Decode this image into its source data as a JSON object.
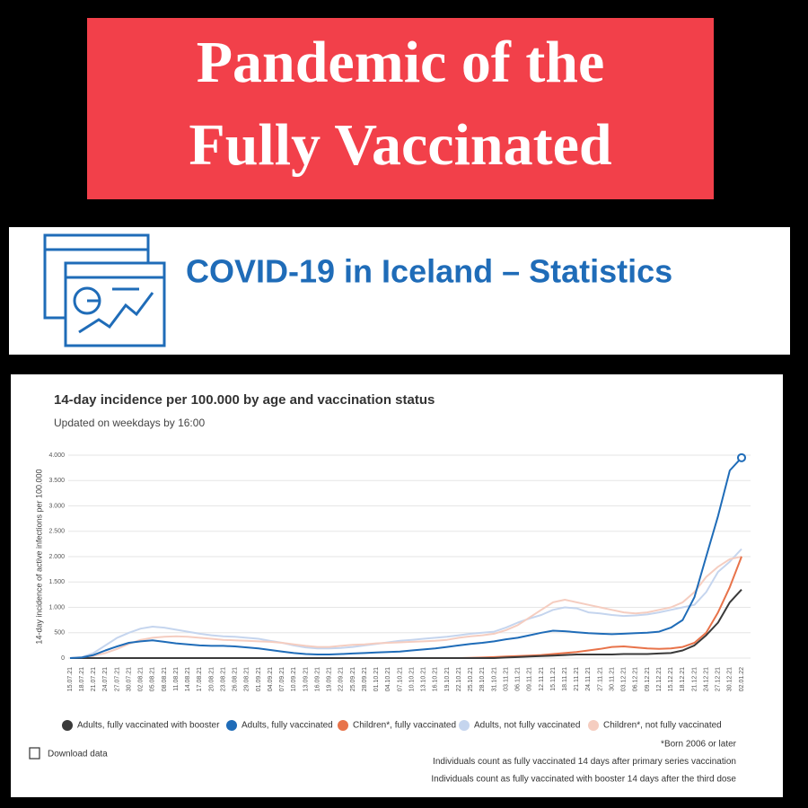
{
  "banner": {
    "lines": [
      "Pandemic of the",
      "Fully Vaccinated"
    ]
  },
  "header": {
    "title": "COVID-19 in Iceland – Statistics"
  },
  "chart_data": {
    "type": "line",
    "title": "14-day incidence per 100.000 by age and vaccination status",
    "subtitle": "Updated on weekdays by 16:00",
    "y_label": "14-day incidence of active infections per 100.000",
    "categories": [
      "15.07.21",
      "18.07.21",
      "21.07.21",
      "24.07.21",
      "27.07.21",
      "30.07.21",
      "02.08.21",
      "05.08.21",
      "08.08.21",
      "11.08.21",
      "14.08.21",
      "17.08.21",
      "20.08.21",
      "23.08.21",
      "26.08.21",
      "29.08.21",
      "01.09.21",
      "04.09.21",
      "07.09.21",
      "10.09.21",
      "13.09.21",
      "16.09.21",
      "19.09.21",
      "22.09.21",
      "25.09.21",
      "28.09.21",
      "01.10.21",
      "04.10.21",
      "07.10.21",
      "10.10.21",
      "13.10.21",
      "16.10.21",
      "19.10.21",
      "22.10.21",
      "25.10.21",
      "28.10.21",
      "31.10.21",
      "03.11.21",
      "06.11.21",
      "09.11.21",
      "12.11.21",
      "15.11.21",
      "18.11.21",
      "21.11.21",
      "24.11.21",
      "27.11.21",
      "30.11.21",
      "03.12.21",
      "06.12.21",
      "09.12.21",
      "12.12.21",
      "15.12.21",
      "18.12.21",
      "21.12.21",
      "24.12.21",
      "27.12.21",
      "30.12.21",
      "02.01.22"
    ],
    "series": [
      {
        "name": "Adults, fully vaccinated with booster",
        "color": "#3a3a3a",
        "values": [
          0,
          0,
          0,
          0,
          0,
          0,
          0,
          0,
          0,
          0,
          0,
          0,
          0,
          0,
          0,
          0,
          0,
          0,
          0,
          0,
          0,
          0,
          0,
          0,
          0,
          0,
          0,
          0,
          0,
          0,
          0,
          0,
          0,
          0,
          0,
          0,
          0,
          10,
          20,
          30,
          40,
          50,
          60,
          70,
          70,
          70,
          70,
          80,
          80,
          80,
          90,
          100,
          150,
          250,
          450,
          700,
          1100,
          1350
        ]
      },
      {
        "name": "Adults, fully vaccinated",
        "color": "#1f6cb8",
        "values": [
          0,
          10,
          60,
          150,
          230,
          300,
          330,
          350,
          320,
          290,
          270,
          250,
          240,
          240,
          230,
          210,
          190,
          160,
          130,
          100,
          80,
          70,
          70,
          80,
          90,
          100,
          110,
          120,
          130,
          150,
          170,
          190,
          220,
          250,
          280,
          300,
          330,
          370,
          400,
          450,
          500,
          540,
          530,
          510,
          490,
          480,
          470,
          480,
          490,
          500,
          520,
          600,
          750,
          1200,
          2000,
          2800,
          3700,
          3950
        ]
      },
      {
        "name": "Children*, fully vaccinated",
        "color": "#e8734a",
        "values": [
          0,
          0,
          0,
          0,
          0,
          0,
          0,
          0,
          0,
          0,
          0,
          0,
          0,
          0,
          0,
          0,
          0,
          0,
          0,
          0,
          0,
          0,
          0,
          0,
          0,
          0,
          0,
          0,
          0,
          0,
          0,
          0,
          0,
          0,
          5,
          10,
          20,
          30,
          40,
          50,
          60,
          80,
          100,
          120,
          150,
          180,
          220,
          230,
          210,
          190,
          180,
          190,
          220,
          300,
          500,
          900,
          1400,
          2000
        ]
      },
      {
        "name": "Adults, not fully vaccinated",
        "color": "#c5d5ee",
        "values": [
          0,
          20,
          100,
          250,
          400,
          500,
          580,
          620,
          600,
          560,
          520,
          480,
          450,
          430,
          420,
          400,
          380,
          340,
          300,
          250,
          210,
          190,
          190,
          200,
          220,
          250,
          280,
          310,
          340,
          360,
          380,
          400,
          420,
          450,
          480,
          500,
          520,
          600,
          700,
          780,
          850,
          950,
          1000,
          980,
          900,
          880,
          850,
          830,
          840,
          860,
          900,
          950,
          1000,
          1050,
          1300,
          1700,
          1900,
          2150
        ]
      },
      {
        "name": "Children*, not fully vaccinated",
        "color": "#f5cdc0",
        "values": [
          0,
          10,
          40,
          100,
          180,
          280,
          360,
          400,
          420,
          430,
          420,
          400,
          380,
          360,
          350,
          340,
          330,
          320,
          300,
          270,
          240,
          220,
          220,
          240,
          260,
          270,
          290,
          300,
          310,
          320,
          330,
          340,
          360,
          400,
          430,
          450,
          480,
          550,
          650,
          800,
          950,
          1100,
          1150,
          1100,
          1050,
          1000,
          950,
          900,
          880,
          900,
          950,
          1000,
          1100,
          1300,
          1600,
          1800,
          1950,
          2000
        ]
      }
    ],
    "ylim": [
      0,
      4000
    ],
    "yticks": [
      0,
      {
        "value": 500,
        "label": "500"
      },
      {
        "value": 1000,
        "label": "1.000"
      },
      {
        "value": 1500,
        "label": "1.500"
      },
      {
        "value": 2000,
        "label": "2.000"
      },
      {
        "value": 2500,
        "label": "2.500"
      },
      {
        "value": 3000,
        "label": "3.000"
      },
      {
        "value": 3500,
        "label": "3.500"
      },
      {
        "value": 4000,
        "label": "4.000"
      }
    ],
    "grid": true,
    "download": "Download data",
    "footnotes": [
      "*Born 2006 or later",
      "Individuals count as fully vaccinated 14 days after primary series vaccination",
      "Individuals count as fully vaccinated with booster 14 days after the third dose"
    ]
  }
}
